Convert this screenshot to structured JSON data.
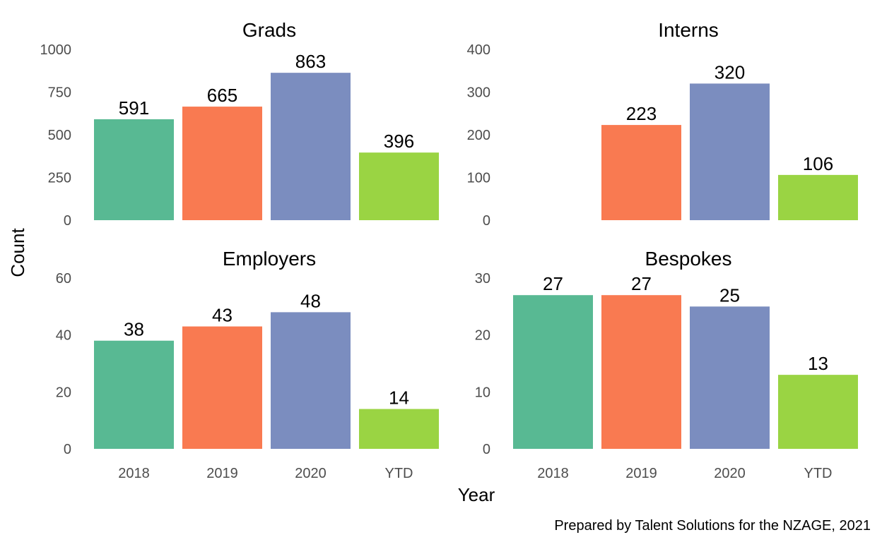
{
  "chart_data": {
    "type": "bar",
    "categories": [
      "2018",
      "2019",
      "2020",
      "YTD"
    ],
    "xlabel": "Year",
    "ylabel": "Count",
    "caption": "Prepared by Talent Solutions for the NZAGE, 2021",
    "legend": "none",
    "grid": false,
    "colors": [
      "#58b993",
      "#f97a51",
      "#7b8dbf",
      "#9ad443"
    ],
    "panels": [
      {
        "title": "Grads",
        "values": [
          591,
          665,
          863,
          396
        ],
        "ylim": [
          0,
          1000
        ],
        "yticks": [
          0,
          250,
          500,
          750,
          1000
        ]
      },
      {
        "title": "Interns",
        "values": [
          null,
          223,
          320,
          106
        ],
        "ylim": [
          0,
          400
        ],
        "yticks": [
          0,
          100,
          200,
          300,
          400
        ]
      },
      {
        "title": "Employers",
        "values": [
          38,
          43,
          48,
          14
        ],
        "ylim": [
          0,
          60
        ],
        "yticks": [
          0,
          20,
          40,
          60
        ]
      },
      {
        "title": "Bespokes",
        "values": [
          27,
          27,
          25,
          13
        ],
        "ylim": [
          0,
          30
        ],
        "yticks": [
          0,
          10,
          20,
          30
        ]
      }
    ]
  }
}
